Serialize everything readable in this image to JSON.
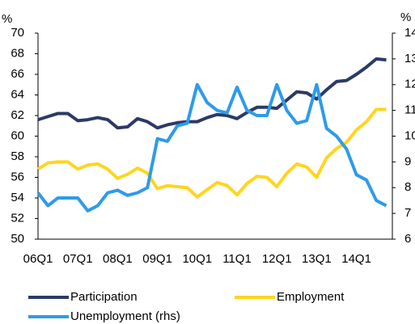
{
  "chart_data": {
    "type": "line",
    "ylabel": "%",
    "y2label": "%",
    "categories": [
      "06Q1",
      null,
      null,
      null,
      "07Q1",
      null,
      null,
      null,
      "08Q1",
      null,
      null,
      null,
      "09Q1",
      null,
      null,
      null,
      "10Q1",
      null,
      null,
      null,
      "11Q1",
      null,
      null,
      null,
      "12Q1",
      null,
      null,
      null,
      "13Q1",
      null,
      null,
      null,
      "14Q1",
      null,
      null,
      null
    ],
    "ylim": [
      50,
      70
    ],
    "yticks": [
      50,
      52,
      54,
      56,
      58,
      60,
      62,
      64,
      66,
      68,
      70
    ],
    "y2lim": [
      6,
      14
    ],
    "y2ticks": [
      6,
      7,
      8,
      9,
      10,
      11,
      12,
      13,
      14
    ],
    "series": [
      {
        "name": "Participation",
        "color": "#2b3a67",
        "values": [
          61.6,
          61.9,
          62.2,
          62.2,
          61.5,
          61.6,
          61.8,
          61.6,
          60.8,
          60.9,
          61.7,
          61.4,
          60.8,
          61.1,
          61.3,
          61.4,
          61.4,
          61.8,
          62.1,
          62.0,
          61.7,
          62.3,
          62.8,
          62.8,
          62.7,
          63.5,
          64.3,
          64.2,
          63.6,
          64.5,
          65.3,
          65.4,
          66.0,
          66.7,
          67.5,
          67.4
        ]
      },
      {
        "name": "Employment",
        "color": "#ffd51f",
        "values": [
          56.8,
          57.4,
          57.5,
          57.5,
          56.8,
          57.2,
          57.3,
          56.8,
          55.9,
          56.3,
          56.9,
          56.4,
          54.9,
          55.2,
          55.1,
          55.0,
          54.1,
          54.8,
          55.5,
          55.2,
          54.3,
          55.4,
          56.1,
          56.0,
          55.1,
          56.4,
          57.3,
          57.0,
          56.0,
          57.9,
          58.8,
          59.4,
          60.6,
          61.4,
          62.6,
          62.6
        ]
      },
      {
        "name": "Unemployment (rhs)",
        "color": "#2e9bea",
        "axis": "y2",
        "values": [
          7.8,
          7.3,
          7.6,
          7.6,
          7.6,
          7.1,
          7.3,
          7.8,
          7.9,
          7.7,
          7.8,
          8.0,
          9.9,
          9.8,
          10.4,
          10.5,
          12.0,
          11.3,
          11.0,
          10.9,
          11.9,
          11.0,
          10.8,
          10.8,
          12.0,
          11.0,
          10.5,
          10.6,
          12.0,
          10.3,
          10.0,
          9.5,
          8.5,
          8.3,
          7.5,
          7.3
        ]
      }
    ]
  }
}
